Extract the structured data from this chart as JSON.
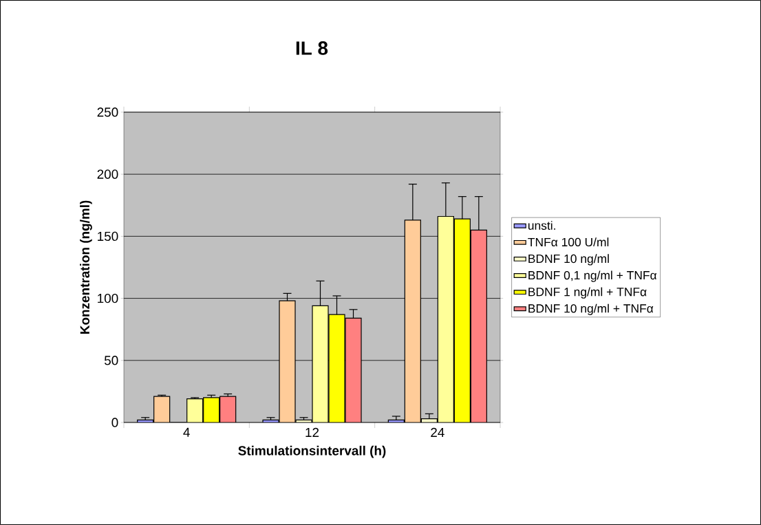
{
  "chart_data": {
    "type": "bar",
    "title": "IL 8",
    "xlabel": "Stimulationsintervall (h)",
    "ylabel": "Konzentration (ng/ml)",
    "categories": [
      "4",
      "12",
      "24"
    ],
    "series": [
      {
        "name": "unsti.",
        "color": "#9999ff",
        "values": [
          2,
          2,
          2
        ],
        "errors": [
          [
            2,
            4
          ],
          [
            2,
            4
          ],
          [
            2,
            5
          ]
        ]
      },
      {
        "name": "TNFα 100 U/ml",
        "color": "#ffcc99",
        "values": [
          21,
          98,
          163
        ],
        "errors": [
          [
            21,
            22
          ],
          [
            98,
            104
          ],
          [
            163,
            192
          ]
        ]
      },
      {
        "name": "BDNF 10 ng/ml",
        "color": "#ffffcc",
        "values": [
          0,
          2,
          3
        ],
        "errors": [
          null,
          [
            2,
            4
          ],
          [
            3,
            7
          ]
        ]
      },
      {
        "name": "BDNF 0,1 ng/ml + TNFα",
        "color": "#ffff99",
        "values": [
          19,
          94,
          166
        ],
        "errors": [
          [
            19,
            20
          ],
          [
            94,
            114
          ],
          [
            166,
            193
          ]
        ]
      },
      {
        "name": "BDNF 1 ng/ml + TNFα",
        "color": "#ffff00",
        "values": [
          20,
          87,
          164
        ],
        "errors": [
          [
            20,
            22
          ],
          [
            87,
            102
          ],
          [
            164,
            182
          ]
        ]
      },
      {
        "name": "BDNF 10 ng/ml + TNFα",
        "color": "#ff8080",
        "values": [
          21,
          84,
          155
        ],
        "errors": [
          [
            21,
            23
          ],
          [
            84,
            91
          ],
          [
            155,
            182
          ]
        ]
      }
    ],
    "ylim": [
      0,
      250
    ],
    "yticks": [
      0,
      50,
      100,
      150,
      200,
      250
    ],
    "grid": "y",
    "legend": "right"
  }
}
